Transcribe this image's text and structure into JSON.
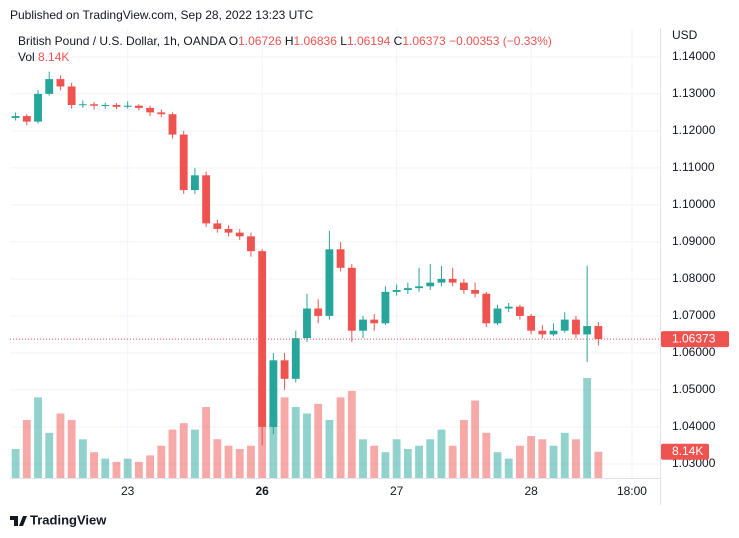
{
  "header": {
    "published": "Published on TradingView.com, Sep 28, 2022 13:23 UTC",
    "symbol": "British Pound / U.S. Dollar, 1h, OANDA",
    "o_label": "O",
    "h_label": "H",
    "l_label": "L",
    "c_label": "C",
    "change": "−0.00353 (−0.33%)",
    "vol_label": "Vol"
  },
  "footer": {
    "brand": "TradingView"
  },
  "chart_data": {
    "type": "candlestick",
    "currency": "USD",
    "up_color": "#26a69a",
    "down_color": "#ef5350",
    "xlim": [
      0,
      58
    ],
    "xticks": [
      {
        "value": 10.5,
        "label": "23"
      },
      {
        "value": 22.5,
        "label": "26"
      },
      {
        "value": 34.5,
        "label": "27"
      },
      {
        "value": 46.5,
        "label": "28"
      },
      {
        "value": 55.5,
        "label": "18:00"
      }
    ],
    "ylim": [
      1.0262,
      1.1478
    ],
    "yticks": [
      {
        "value": 1.03,
        "label": "1.03000"
      },
      {
        "value": 1.04,
        "label": "1.04000"
      },
      {
        "value": 1.05,
        "label": "1.05000"
      },
      {
        "value": 1.06,
        "label": "1.06000"
      },
      {
        "value": 1.07,
        "label": "1.07000"
      },
      {
        "value": 1.08,
        "label": "1.08000"
      },
      {
        "value": 1.09,
        "label": "1.09000"
      },
      {
        "value": 1.1,
        "label": "1.10000"
      },
      {
        "value": 1.11,
        "label": "1.11000"
      },
      {
        "value": 1.12,
        "label": "1.12000"
      },
      {
        "value": 1.13,
        "label": "1.13000"
      },
      {
        "value": 1.14,
        "label": "1.14000"
      }
    ],
    "open": [
      1.1235,
      1.124,
      1.1225,
      1.13,
      1.134,
      1.132,
      1.127,
      1.1272,
      1.1268,
      1.127,
      1.1265,
      1.1268,
      1.1262,
      1.125,
      1.1245,
      1.119,
      1.104,
      1.108,
      1.095,
      1.0935,
      1.0925,
      1.0915,
      1.0875,
      1.04,
      1.058,
      1.053,
      1.064,
      1.072,
      1.07,
      1.088,
      1.083,
      1.066,
      1.069,
      1.068,
      1.0765,
      1.077,
      1.0775,
      1.078,
      1.079,
      1.08,
      1.079,
      1.077,
      1.076,
      1.068,
      1.072,
      1.0725,
      1.07,
      1.066,
      1.065,
      1.066,
      1.069,
      1.065,
      1.06726
    ],
    "high": [
      1.125,
      1.1245,
      1.131,
      1.136,
      1.135,
      1.133,
      1.1282,
      1.1278,
      1.1276,
      1.1275,
      1.128,
      1.1272,
      1.1268,
      1.1258,
      1.125,
      1.12,
      1.11,
      1.109,
      1.096,
      1.0945,
      1.0935,
      1.0925,
      1.088,
      1.06,
      1.06,
      1.066,
      1.076,
      1.0745,
      1.093,
      1.09,
      1.084,
      1.07,
      1.0705,
      1.078,
      1.0785,
      1.079,
      1.083,
      1.084,
      1.0835,
      1.083,
      1.08,
      1.079,
      1.0765,
      1.073,
      1.0735,
      1.073,
      1.0705,
      1.0675,
      1.068,
      1.071,
      1.07,
      1.0836,
      1.06836
    ],
    "low": [
      1.1228,
      1.1215,
      1.122,
      1.1295,
      1.131,
      1.126,
      1.1262,
      1.1258,
      1.126,
      1.1258,
      1.126,
      1.1255,
      1.124,
      1.1238,
      1.118,
      1.103,
      1.103,
      1.094,
      1.0925,
      1.0915,
      1.0905,
      1.086,
      1.035,
      1.038,
      1.05,
      1.052,
      1.063,
      1.068,
      1.069,
      1.082,
      1.063,
      1.064,
      1.066,
      1.0675,
      1.0755,
      1.076,
      1.0765,
      1.077,
      1.078,
      1.078,
      1.076,
      1.075,
      1.067,
      1.0675,
      1.071,
      1.069,
      1.065,
      1.064,
      1.0645,
      1.0655,
      1.064,
      1.0575,
      1.06194
    ],
    "close": [
      1.124,
      1.1225,
      1.13,
      1.134,
      1.132,
      1.127,
      1.1272,
      1.1268,
      1.127,
      1.1265,
      1.1268,
      1.1262,
      1.125,
      1.1245,
      1.119,
      1.104,
      1.108,
      1.095,
      1.0935,
      1.0925,
      1.0915,
      1.0875,
      1.04,
      1.058,
      1.053,
      1.064,
      1.072,
      1.07,
      1.088,
      1.083,
      1.066,
      1.069,
      1.068,
      1.0765,
      1.077,
      1.0775,
      1.078,
      1.079,
      1.08,
      1.079,
      1.077,
      1.076,
      1.068,
      1.072,
      1.0725,
      1.07,
      1.066,
      1.065,
      1.066,
      1.069,
      1.065,
      1.06726,
      1.06373
    ],
    "volume": {
      "values": [
        9000,
        18000,
        25000,
        14000,
        20000,
        18000,
        12000,
        8000,
        6000,
        5000,
        6000,
        5000,
        7000,
        10000,
        15000,
        17000,
        15000,
        22000,
        12000,
        10000,
        9000,
        10000,
        31000,
        20000,
        25000,
        22000,
        20000,
        23000,
        18000,
        25000,
        27000,
        12000,
        10000,
        8000,
        12000,
        9000,
        10000,
        12000,
        15000,
        10000,
        18000,
        24000,
        14000,
        8000,
        6000,
        10000,
        13000,
        12000,
        10000,
        14000,
        12000,
        31000,
        8140
      ],
      "value_labels": [
        null,
        null,
        null,
        null,
        null,
        null,
        null,
        null,
        null,
        null,
        null,
        null,
        null,
        null,
        null,
        null,
        null,
        null,
        null,
        null,
        null,
        null,
        null,
        null,
        null,
        null,
        null,
        null,
        null,
        null,
        null,
        null,
        null,
        null,
        null,
        null,
        null,
        null,
        null,
        null,
        null,
        null,
        null,
        null,
        null,
        null,
        null,
        null,
        null,
        null,
        null,
        null,
        "8.14K"
      ]
    }
  }
}
